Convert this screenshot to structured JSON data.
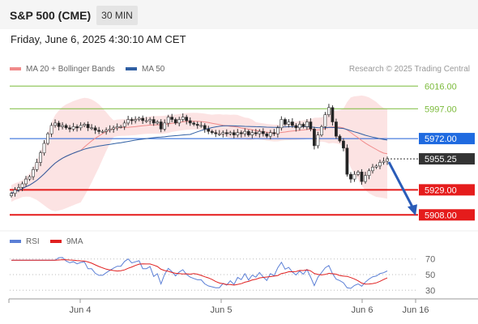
{
  "header": {
    "symbol": "S&P 500 (CME)",
    "timeframe": "30 MIN",
    "datetime": "Friday, June 6, 2025 4:30:10 AM CET"
  },
  "legend": {
    "ma20_bb": {
      "label": "MA 20 + Bollinger Bands",
      "color": "#f08a8a"
    },
    "ma50": {
      "label": "MA 50",
      "color": "#2f5fa3"
    },
    "rsi": {
      "label": "RSI",
      "color": "#5b7fd6"
    },
    "rsi_ma": {
      "label": "9MA",
      "color": "#e02020"
    }
  },
  "credit": "Research © 2025 Trading Central",
  "chart_data": [
    {
      "type": "candlestick",
      "ylim": [
        5898,
        6023
      ],
      "x_ticks": [
        "Jun 4",
        "Jun 5",
        "Jun 6",
        "Jun 16"
      ],
      "current_price": "5955.25",
      "levels": [
        {
          "value": 6016.0,
          "label": "6016.00",
          "kind": "resistance",
          "color": "#7cbb3c"
        },
        {
          "value": 5997.0,
          "label": "5997.00",
          "kind": "resistance",
          "color": "#7cbb3c"
        },
        {
          "value": 5972.0,
          "label": "5972.00",
          "kind": "pivot",
          "color": "#1f5fd8"
        },
        {
          "value": 5929.0,
          "label": "5929.00",
          "kind": "support",
          "color": "#e51c1c"
        },
        {
          "value": 5908.0,
          "label": "5908.00",
          "kind": "support",
          "color": "#e51c1c"
        }
      ],
      "close": [
        5926,
        5929,
        5931,
        5934,
        5938,
        5940,
        5946,
        5952,
        5960,
        5968,
        5976,
        5983,
        5985,
        5982,
        5983,
        5981,
        5980,
        5982,
        5981,
        5983,
        5984,
        5981,
        5981,
        5979,
        5978,
        5978,
        5979,
        5980,
        5981,
        5982,
        5982,
        5985,
        5988,
        5987,
        5988,
        5989,
        5987,
        5987,
        5988,
        5985,
        5986,
        5980,
        5985,
        5990,
        5988,
        5985,
        5988,
        5990,
        5987,
        5985,
        5984,
        5983,
        5983,
        5980,
        5978,
        5977,
        5976,
        5976,
        5977,
        5976,
        5977,
        5975,
        5977,
        5976,
        5978,
        5975,
        5977,
        5976,
        5978,
        5976,
        5974,
        5977,
        5976,
        5981,
        5988,
        5984,
        5986,
        5983,
        5981,
        5984,
        5982,
        5986,
        5980,
        5966,
        5975,
        5982,
        5992,
        5998,
        5986,
        5974,
        5970,
        5964,
        5942,
        5938,
        5942,
        5944,
        5936,
        5941,
        5945,
        5948,
        5949,
        5952,
        5953,
        5955
      ]
    },
    {
      "type": "line",
      "name": "RSI",
      "ylim": [
        22,
        78
      ],
      "y_ticks": [
        70,
        50,
        30
      ]
    }
  ]
}
